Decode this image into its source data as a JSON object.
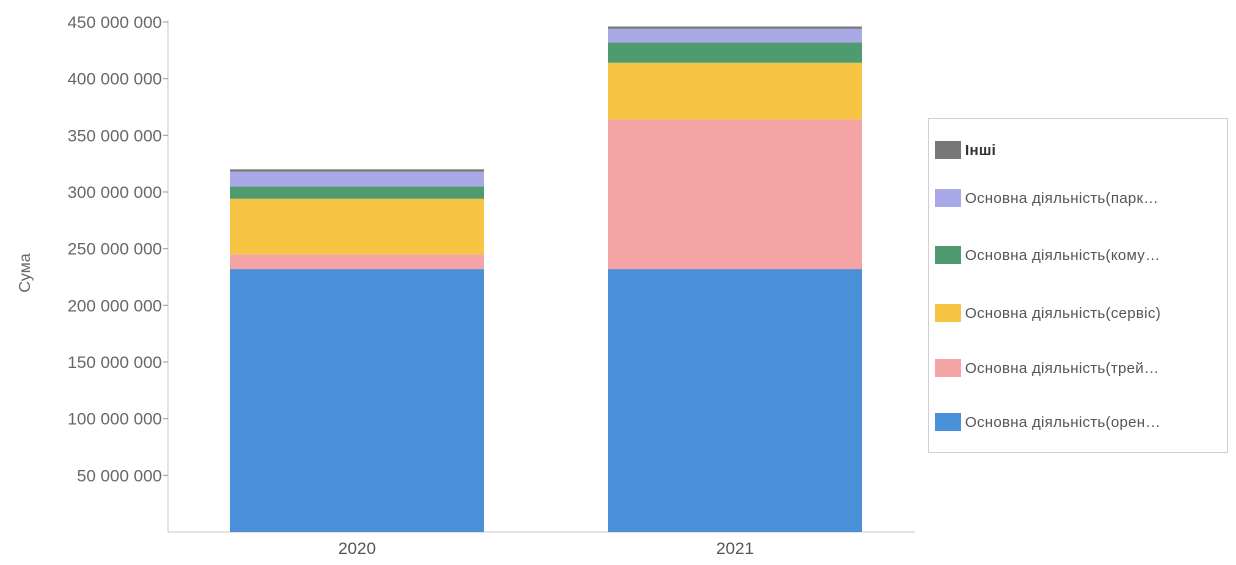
{
  "chart_data": {
    "type": "bar",
    "stacked": true,
    "categories": [
      "2020",
      "2021"
    ],
    "ylabel": "Сума",
    "xlabel": "",
    "ylim": [
      0,
      450000000
    ],
    "yticks": [
      50000000,
      100000000,
      150000000,
      200000000,
      250000000,
      300000000,
      350000000,
      400000000,
      450000000
    ],
    "ytick_labels": [
      "50 000 000",
      "100 000 000",
      "150 000 000",
      "200 000 000",
      "250 000 000",
      "300 000 000",
      "350 000 000",
      "400 000 000",
      "450 000 000"
    ],
    "grid": false,
    "legend_position": "right",
    "series": [
      {
        "name": "Основна діяльність(орен…",
        "color": "#4a90d9",
        "values": [
          232000000,
          232000000
        ]
      },
      {
        "name": "Основна діяльність(трей…",
        "color": "#f4a4a4",
        "values": [
          13000000,
          132000000
        ]
      },
      {
        "name": "Основна діяльність(сервіс)",
        "color": "#f7c443",
        "values": [
          49000000,
          50000000
        ]
      },
      {
        "name": "Основна діяльність(кому…",
        "color": "#4f9a6e",
        "values": [
          11000000,
          18000000
        ]
      },
      {
        "name": "Основна діяльність(парк…",
        "color": "#a9a9e8",
        "values": [
          13000000,
          12000000
        ]
      },
      {
        "name": "Інші",
        "color": "#777777",
        "values": [
          2000000,
          2000000
        ]
      }
    ],
    "legend_order": [
      "Інші",
      "Основна діяльність(парк…",
      "Основна діяльність(кому…",
      "Основна діяльність(сервіс)",
      "Основна діяльність(трей…",
      "Основна діяльність(орен…"
    ]
  }
}
